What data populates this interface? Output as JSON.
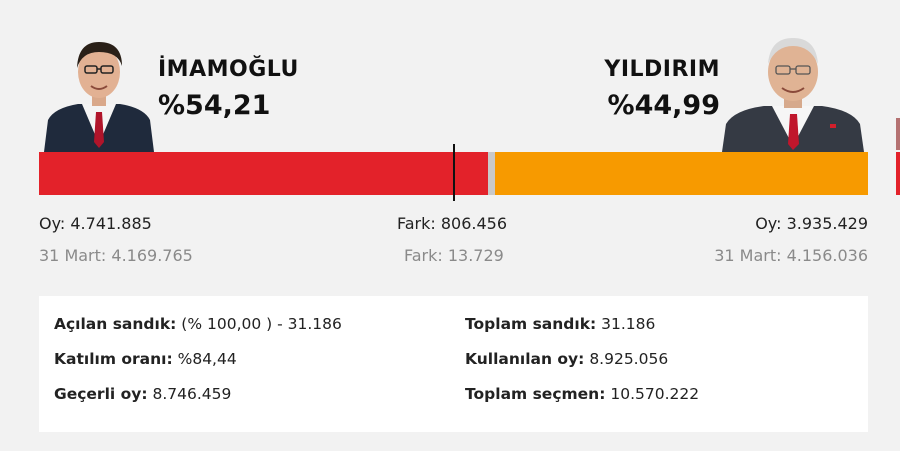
{
  "candidates": {
    "left": {
      "name": "İMAMOĞLU",
      "percent": "%54,21",
      "color": "#e3222a",
      "share": 0.5421
    },
    "right": {
      "name": "YILDIRIM",
      "percent": "%44,99",
      "color": "#f79a00",
      "share": 0.4499
    }
  },
  "stats": {
    "left_votes": "Oy: 4.741.885",
    "left_prev": "31 Mart: 4.169.765",
    "diff": "Fark: 806.456",
    "diff_prev": "Fark: 13.729",
    "right_votes": "Oy: 3.935.429",
    "right_prev": "31 Mart: 4.156.036"
  },
  "summary": {
    "opened_label": "Açılan sandık:",
    "opened_value": "(% 100,00 ) - 31.186",
    "turnout_label": "Katılım oranı:",
    "turnout_value": "%84,44",
    "valid_label": "Geçerli oy:",
    "valid_value": "8.746.459",
    "total_boxes_label": "Toplam sandık:",
    "total_boxes_value": "31.186",
    "used_label": "Kullanılan oy:",
    "used_value": "8.925.056",
    "voters_label": "Toplam seçmen:",
    "voters_value": "10.570.222"
  },
  "icons": [
    "candidate-photo-left",
    "candidate-photo-right"
  ]
}
